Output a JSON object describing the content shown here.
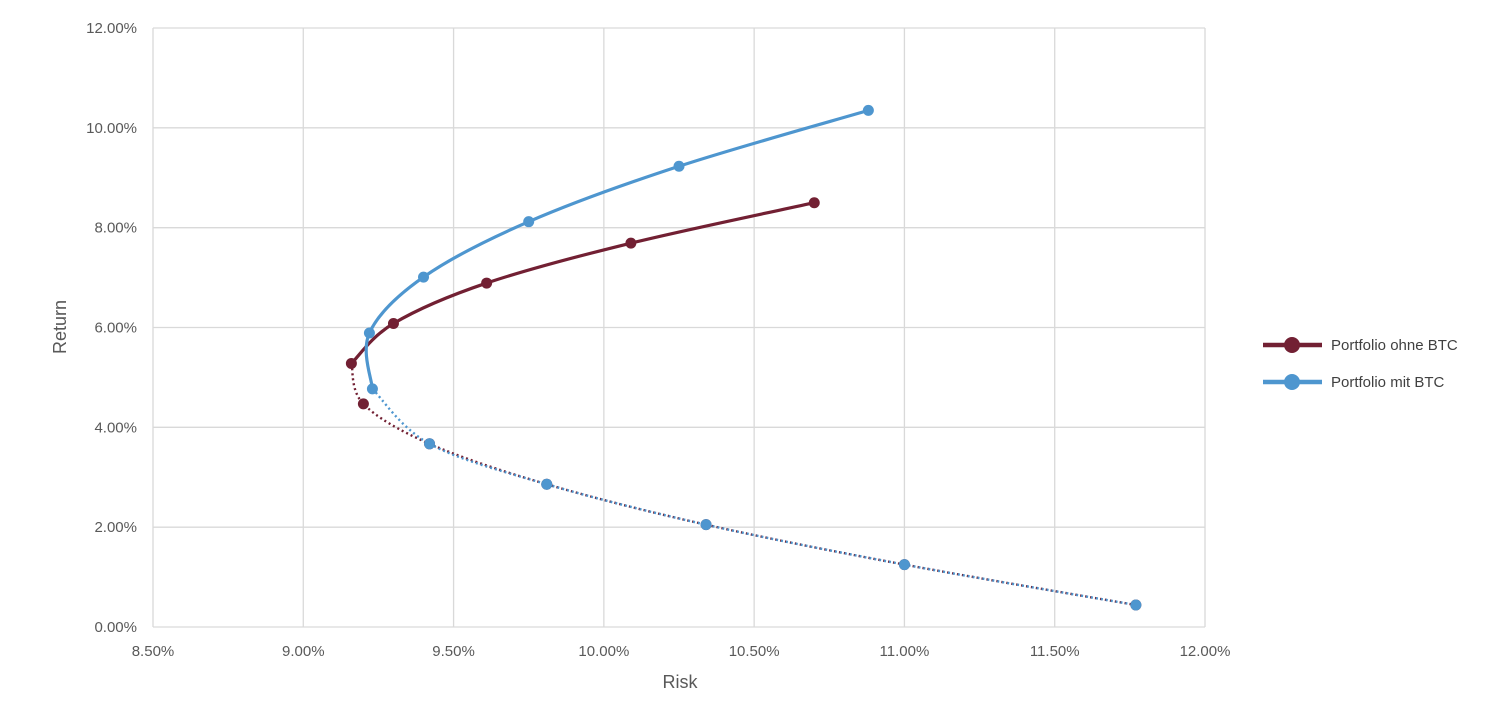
{
  "chart_data": {
    "type": "scatter",
    "xlabel": "Risk",
    "ylabel": "Return",
    "xlim": [
      0.085,
      0.12
    ],
    "ylim": [
      0.0,
      0.12
    ],
    "x_ticks": [
      0.085,
      0.09,
      0.095,
      0.1,
      0.105,
      0.11,
      0.115,
      0.12
    ],
    "y_ticks": [
      0.0,
      0.02,
      0.04,
      0.06,
      0.08,
      0.1,
      0.12
    ],
    "x_tick_labels": [
      "8.50%",
      "9.00%",
      "9.50%",
      "10.00%",
      "10.50%",
      "11.00%",
      "11.50%",
      "12.00%"
    ],
    "y_tick_labels": [
      "0.00%",
      "2.00%",
      "4.00%",
      "6.00%",
      "8.00%",
      "10.00%",
      "12.00%"
    ],
    "grid": true,
    "legend_position": "right",
    "series": [
      {
        "name": "Portfolio ohne BTC",
        "color": "#722033",
        "efficient_points": [
          {
            "x": 0.0916,
            "y": 0.0528
          },
          {
            "x": 0.093,
            "y": 0.0608
          },
          {
            "x": 0.0961,
            "y": 0.0689
          },
          {
            "x": 0.1009,
            "y": 0.0769
          },
          {
            "x": 0.107,
            "y": 0.085
          }
        ],
        "inefficient_points": [
          {
            "x": 0.092,
            "y": 0.0447
          },
          {
            "x": 0.0942,
            "y": 0.0367
          },
          {
            "x": 0.0981,
            "y": 0.0286
          },
          {
            "x": 0.1034,
            "y": 0.0205
          },
          {
            "x": 0.11,
            "y": 0.0125
          },
          {
            "x": 0.1177,
            "y": 0.0044
          }
        ]
      },
      {
        "name": "Portfolio mit BTC",
        "color": "#4e96cf",
        "efficient_points": [
          {
            "x": 0.0923,
            "y": 0.0477
          },
          {
            "x": 0.0922,
            "y": 0.0589
          },
          {
            "x": 0.094,
            "y": 0.0701
          },
          {
            "x": 0.0975,
            "y": 0.0812
          },
          {
            "x": 0.1025,
            "y": 0.0923
          },
          {
            "x": 0.1088,
            "y": 0.1035
          }
        ],
        "inefficient_points": [
          {
            "x": 0.0942,
            "y": 0.0367
          },
          {
            "x": 0.0981,
            "y": 0.0286
          },
          {
            "x": 0.1034,
            "y": 0.0205
          },
          {
            "x": 0.11,
            "y": 0.0125
          },
          {
            "x": 0.1177,
            "y": 0.0044
          }
        ]
      }
    ]
  }
}
